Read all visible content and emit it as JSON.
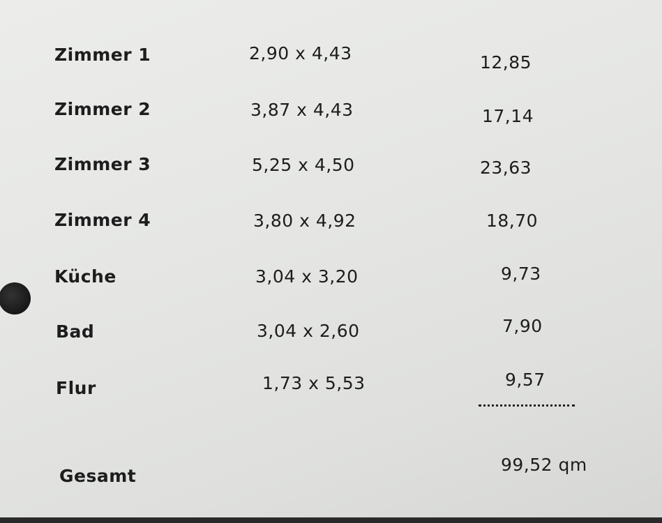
{
  "rows": [
    {
      "label": "Zimmer 1",
      "dims": "2,90 x 4,43",
      "area": "12,85"
    },
    {
      "label": "Zimmer 2",
      "dims": "3,87 x 4,43",
      "area": "17,14"
    },
    {
      "label": "Zimmer 3",
      "dims": "5,25 x 4,50",
      "area": "23,63"
    },
    {
      "label": "Zimmer 4",
      "dims": "3,80 x 4,92",
      "area": "18,70"
    },
    {
      "label": "Küche",
      "dims": "3,04 x 3,20",
      "area": "9,73"
    },
    {
      "label": "Bad",
      "dims": "3,04 x 2,60",
      "area": "7,90"
    },
    {
      "label": "Flur",
      "dims": "1,73 x 5,53",
      "area": "9,57"
    }
  ],
  "total": {
    "label": "Gesamt",
    "value": "99,52 qm"
  }
}
